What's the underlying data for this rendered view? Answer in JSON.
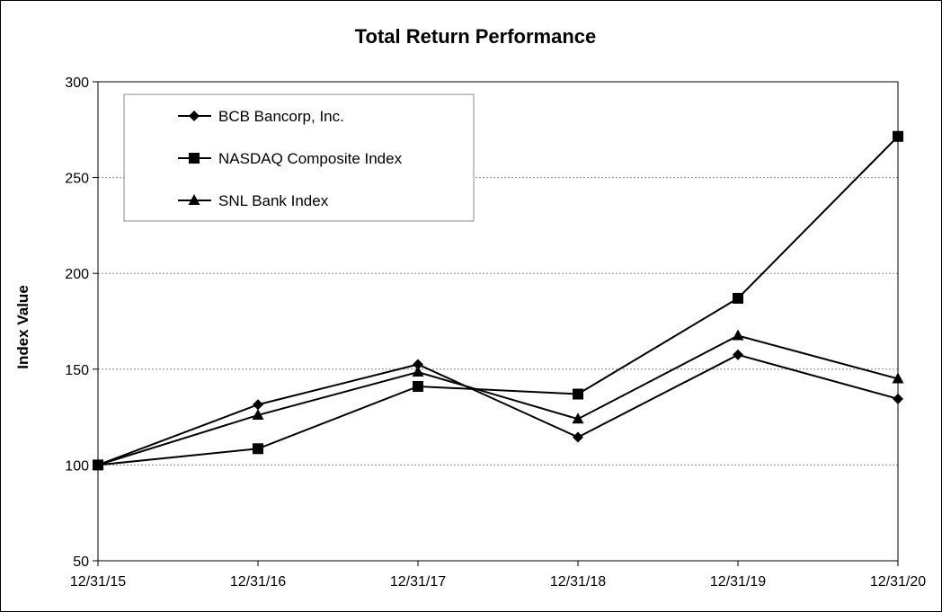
{
  "chart_data": {
    "type": "line",
    "title": "Total Return Performance",
    "xlabel": "",
    "ylabel": "Index Value",
    "categories": [
      "12/31/15",
      "12/31/16",
      "12/31/17",
      "12/31/18",
      "12/31/19",
      "12/31/20"
    ],
    "ylim": [
      50,
      300
    ],
    "yticks": [
      "50",
      "100",
      "150",
      "200",
      "250",
      "300"
    ],
    "grid": "horizontal dashed",
    "legend_position": "top-left",
    "series": [
      {
        "name": "BCB Bancorp, Inc.",
        "marker": "diamond",
        "values": [
          100,
          131.5,
          152.5,
          114.5,
          157.5,
          134.5
        ]
      },
      {
        "name": "NASDAQ Composite Index",
        "marker": "square",
        "values": [
          100,
          108.5,
          141,
          137,
          187,
          271.5
        ]
      },
      {
        "name": "SNL Bank Index",
        "marker": "triangle",
        "values": [
          100,
          126,
          148.5,
          124,
          167.5,
          145
        ]
      }
    ]
  }
}
